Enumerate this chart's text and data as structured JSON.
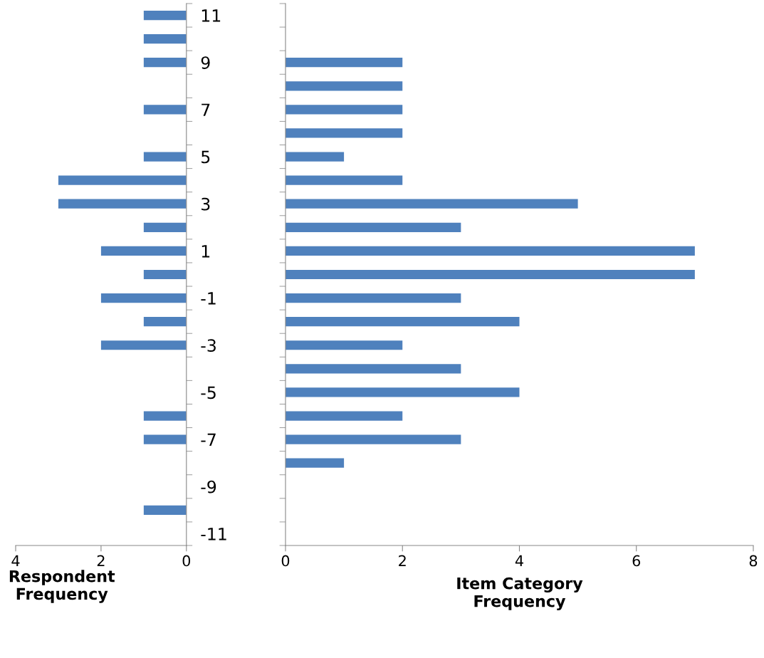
{
  "chart_data": [
    {
      "type": "bar",
      "orientation": "horizontal",
      "xlabel": "Respondent\nFrequency",
      "categories": [
        "11",
        null,
        "9",
        null,
        "7",
        null,
        "5",
        null,
        "3",
        null,
        "1",
        null,
        "-1",
        null,
        "-3",
        null,
        "-5",
        null,
        "-7",
        null,
        "-9",
        null,
        "-11"
      ],
      "values": [
        1,
        1,
        1,
        null,
        1,
        null,
        1,
        3,
        3,
        1,
        2,
        1,
        2,
        1,
        2,
        null,
        null,
        1,
        1,
        null,
        null,
        1,
        null
      ],
      "color": "#4f81bd",
      "xlim": [
        4,
        0
      ],
      "xticks": [
        4,
        2,
        0
      ],
      "grid": false
    },
    {
      "type": "bar",
      "orientation": "horizontal",
      "xlabel": "Item Category\nFrequency",
      "categories": [
        null,
        null,
        null,
        null,
        null,
        null,
        null,
        null,
        null,
        null,
        null,
        null,
        null,
        null,
        null,
        null,
        null,
        null,
        null,
        null,
        null,
        null,
        null
      ],
      "values": [
        null,
        null,
        2,
        2,
        2,
        2,
        1,
        2,
        5,
        3,
        7,
        7,
        3,
        4,
        2,
        3,
        4,
        2,
        3,
        1,
        null,
        null,
        null
      ],
      "color": "#4f81bd",
      "xlim": [
        0,
        8
      ],
      "xticks": [
        0,
        2,
        4,
        6,
        8
      ],
      "grid": false,
      "tick_labels": "x"
    }
  ]
}
